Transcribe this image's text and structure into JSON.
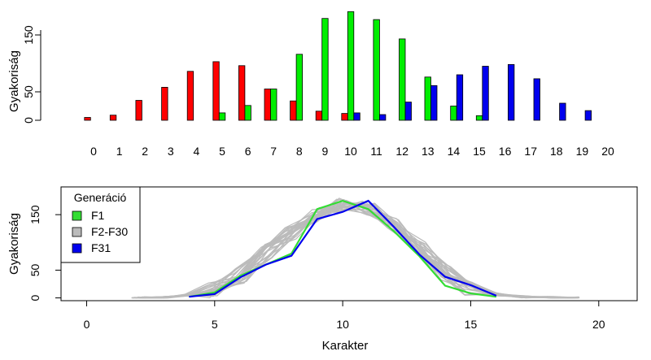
{
  "chart_data": [
    {
      "type": "bar",
      "ylabel": "Gyakoriság",
      "xlabel": "",
      "categories": [
        "0",
        "1",
        "2",
        "3",
        "4",
        "5",
        "6",
        "7",
        "8",
        "9",
        "10",
        "11",
        "12",
        "13",
        "14",
        "15",
        "16",
        "17",
        "18",
        "19",
        "20"
      ],
      "yticks": [
        0,
        50,
        150
      ],
      "ylim": [
        0,
        200
      ],
      "series": [
        {
          "color": "#ff0000",
          "values": [
            5,
            9,
            35,
            58,
            86,
            103,
            96,
            55,
            34,
            16,
            12,
            0,
            0,
            0,
            0,
            0,
            0,
            0,
            0,
            0,
            0
          ]
        },
        {
          "color": "#00ee00",
          "values": [
            0,
            0,
            0,
            0,
            0,
            13,
            26,
            55,
            116,
            179,
            191,
            177,
            143,
            76,
            25,
            8,
            0,
            0,
            0,
            0,
            0
          ]
        },
        {
          "color": "#0000ee",
          "values": [
            0,
            0,
            0,
            0,
            0,
            0,
            0,
            0,
            0,
            0,
            13,
            10,
            32,
            61,
            80,
            95,
            98,
            73,
            30,
            17,
            0
          ]
        }
      ],
      "grid": false
    },
    {
      "type": "line",
      "ylabel": "Gyakoriság",
      "xlabel": "Karakter",
      "xticks": [
        0,
        5,
        10,
        15,
        20
      ],
      "yticks": [
        0,
        50,
        150
      ],
      "xlim": [
        -1,
        21.5
      ],
      "ylim": [
        -5,
        200
      ],
      "legend": {
        "title": "Generáció",
        "position": "top-left",
        "entries": [
          {
            "label": "F1",
            "color": "#33dd33"
          },
          {
            "label": "F2-F30",
            "color": "#bbbbbb"
          },
          {
            "label": "F31",
            "color": "#0000ee"
          }
        ]
      },
      "series": [
        {
          "name": "F1",
          "color": "#33dd33",
          "x": [
            4,
            5,
            6,
            7,
            8,
            9,
            10,
            11,
            12,
            13,
            14,
            15,
            16
          ],
          "y": [
            2,
            10,
            40,
            60,
            80,
            160,
            175,
            160,
            120,
            75,
            22,
            8,
            2
          ]
        },
        {
          "name": "F31",
          "color": "#0000ee",
          "x": [
            4,
            5,
            6,
            7,
            8,
            9,
            10,
            11,
            12,
            13,
            14,
            15,
            16
          ],
          "y": [
            2,
            7,
            37,
            60,
            76,
            142,
            155,
            175,
            128,
            78,
            38,
            23,
            4
          ]
        }
      ],
      "grey_series": {
        "name": "F2-F30",
        "color": "#bbbbbb",
        "x": [
          2,
          3,
          4,
          5,
          6,
          7,
          8,
          9,
          10,
          11,
          12,
          13,
          14,
          15,
          16,
          17,
          18,
          19
        ],
        "base_y": [
          0,
          1,
          5,
          14,
          40,
          85,
          120,
          150,
          168,
          162,
          130,
          88,
          45,
          18,
          6,
          2,
          1,
          0
        ]
      },
      "grid": false
    }
  ]
}
